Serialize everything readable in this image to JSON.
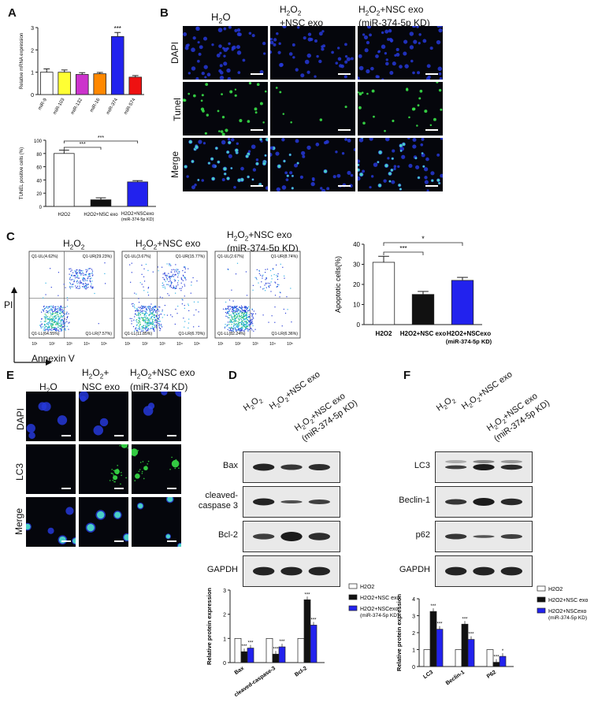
{
  "panelA": {
    "letter": "A",
    "chart1": {
      "type": "bar",
      "ylabel": "Relative mRNA expression",
      "categories": [
        "miR-9",
        "miR-103",
        "miR-132",
        "miR-16",
        "miR-374",
        "miR-574"
      ],
      "values": [
        1.0,
        1.0,
        0.9,
        0.93,
        2.6,
        0.78
      ],
      "errors": [
        0.15,
        0.1,
        0.08,
        0.06,
        0.18,
        0.07
      ],
      "colors": [
        "#ffffff",
        "#ffff33",
        "#cc33cc",
        "#ff8800",
        "#2222ee",
        "#ee1111"
      ],
      "ylim": [
        0,
        3
      ],
      "yticks": [
        "0",
        "1",
        "2",
        "3"
      ],
      "sig": "***"
    },
    "chart2": {
      "type": "bar",
      "ylabel": "TUNEL positive cells (%)",
      "categories": [
        "H2O2",
        "H2O2+NSC exo",
        "H2O2+NSCexo (miR-374-5p KD)"
      ],
      "values": [
        80,
        10,
        37
      ],
      "errors": [
        5,
        3,
        2
      ],
      "colors": [
        "#ffffff",
        "#111111",
        "#2222ee"
      ],
      "ylim": [
        0,
        100
      ],
      "yticks": [
        "0",
        "20",
        "40",
        "60",
        "80",
        "100"
      ],
      "sig1": "***",
      "sig2": "***"
    }
  },
  "panelB": {
    "letter": "B",
    "columns": [
      "H2O",
      "H2O2 +NSC exo",
      "H2O2+NSC exo (miR-374-5p KD)"
    ],
    "rows": [
      "DAPI",
      "Tunel",
      "Merge"
    ]
  },
  "panelC": {
    "letter": "C",
    "plots": [
      {
        "title": "H2O2",
        "ul": "Q1-UL(4.62%)",
        "ur": "Q1-UR(29.23%)",
        "ll": "Q1-LL(64.55%)",
        "lr": "Q1-LR(7.57%)"
      },
      {
        "title": "H2O2+NSC exo",
        "ul": "Q1-UL(3.67%)",
        "ur": "Q1-UR(15.77%)",
        "ll": "Q1-LL(11.85%)",
        "lr": "Q1-LR(6.70%)"
      },
      {
        "title": "H2O2+NSC exo (miR-374-5p KD)",
        "ul": "Q1-UL(2.67%)",
        "ur": "Q1-UR(8.74%)",
        "ll": "Q1-LL(82.24%)",
        "lr": "Q1-LR(6.36%)"
      }
    ],
    "xaxis": "Annexin V",
    "yaxis": "PI",
    "chart": {
      "type": "bar",
      "ylabel": "Apoptotic cells(%)",
      "categories": [
        "H2O2",
        "H2O2+NSC exo",
        "H2O2+NSCexo (miR-374-5p KD)"
      ],
      "values": [
        31,
        15,
        22
      ],
      "errors": [
        3,
        1.5,
        1.5
      ],
      "colors": [
        "#ffffff",
        "#111111",
        "#2222ee"
      ],
      "ylim": [
        0,
        40
      ],
      "yticks": [
        "0",
        "10",
        "20",
        "30",
        "40"
      ],
      "sig1": "***",
      "sig2": "*"
    }
  },
  "panelE": {
    "letter": "E",
    "columns": [
      "H2O",
      "H2O2+ NSC exo",
      "H2O2+NSC exo (miR-374 KD)"
    ],
    "rows": [
      "DAPI",
      "LC3",
      "Merge"
    ]
  },
  "panelD": {
    "letter": "D",
    "columns": [
      "H2O2",
      "H2O2+NSC exo",
      "H2O2+NSC exo (miR-374-5p KD)"
    ],
    "blots": [
      "Bax",
      "cleaved- caspase 3",
      "Bcl-2",
      "GAPDH"
    ],
    "chart": {
      "type": "bar",
      "ylabel": "Relative protein expression",
      "categories": [
        "Bax",
        "cleaved-caspase-3",
        "Bcl-2"
      ],
      "series": [
        {
          "name": "H2O2",
          "values": [
            1,
            1,
            1
          ],
          "color": "#ffffff"
        },
        {
          "name": "H2O2+NSC exo",
          "values": [
            0.45,
            0.35,
            2.6
          ],
          "color": "#111111"
        },
        {
          "name": "H2O2+NSCexo (miR-374-5p KD)",
          "values": [
            0.6,
            0.65,
            1.55
          ],
          "color": "#2222ee"
        }
      ],
      "ylim": [
        0,
        3
      ],
      "yticks": [
        "0",
        "1",
        "2",
        "3"
      ],
      "sig": "***"
    }
  },
  "panelF": {
    "letter": "F",
    "columns": [
      "H2O2",
      "H2O2+NSC exo",
      "H2O2+NSC exo (miR-374-5p KD)"
    ],
    "blots": [
      "LC3",
      "Beclin-1",
      "p62",
      "GAPDH"
    ],
    "chart": {
      "type": "bar",
      "ylabel": "Relative protein expression",
      "categories": [
        "LC3",
        "Beclin-1",
        "P62"
      ],
      "series": [
        {
          "name": "H2O2",
          "values": [
            1,
            1,
            1
          ],
          "color": "#ffffff"
        },
        {
          "name": "H2O2+NSC exo",
          "values": [
            3.25,
            2.5,
            0.25
          ],
          "color": "#111111"
        },
        {
          "name": "H2O2+NSCexo (miR-374-5p KD)",
          "values": [
            2.2,
            1.6,
            0.6
          ],
          "color": "#2222ee"
        }
      ],
      "ylim": [
        0,
        4
      ],
      "yticks": [
        "0",
        "1",
        "2",
        "3",
        "4"
      ],
      "sig": "***",
      "sig_small": "*"
    }
  }
}
